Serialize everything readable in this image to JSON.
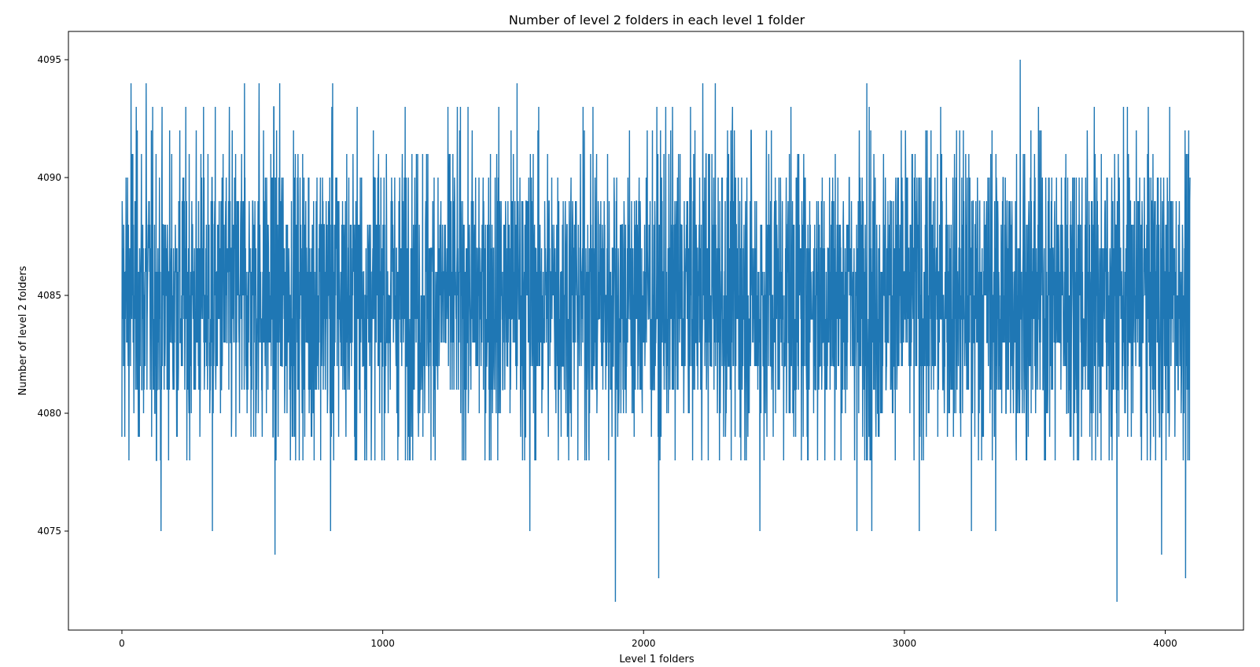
{
  "chart_data": {
    "type": "line",
    "title": "Number of level 2 folders in each level 1 folder",
    "xlabel": "Level 1 folders",
    "ylabel": "Number of level 2 folders",
    "xlim": [
      -205,
      4300
    ],
    "ylim": [
      4070.8,
      4096.2
    ],
    "xticks": [
      0,
      1000,
      2000,
      3000,
      4000
    ],
    "yticks": [
      4075,
      4080,
      4085,
      4090,
      4095
    ],
    "grid": false,
    "legend": "none",
    "series": [
      {
        "color": "#1f77b4",
        "x_start": 0,
        "x_end": 4095,
        "typical_range": [
          4079,
          4092
        ],
        "extremes": [
          {
            "x": 0,
            "y": 4079
          },
          {
            "x": 35,
            "y": 4094
          },
          {
            "x": 93,
            "y": 4094
          },
          {
            "x": 150,
            "y": 4075
          },
          {
            "x": 347,
            "y": 4075
          },
          {
            "x": 470,
            "y": 4094
          },
          {
            "x": 526,
            "y": 4094
          },
          {
            "x": 587,
            "y": 4074
          },
          {
            "x": 605,
            "y": 4094
          },
          {
            "x": 800,
            "y": 4075
          },
          {
            "x": 808,
            "y": 4094
          },
          {
            "x": 1515,
            "y": 4094
          },
          {
            "x": 1564,
            "y": 4075
          },
          {
            "x": 1892,
            "y": 4072
          },
          {
            "x": 2058,
            "y": 4073
          },
          {
            "x": 2227,
            "y": 4094
          },
          {
            "x": 2275,
            "y": 4094
          },
          {
            "x": 2446,
            "y": 4075
          },
          {
            "x": 2818,
            "y": 4075
          },
          {
            "x": 2856,
            "y": 4094
          },
          {
            "x": 2875,
            "y": 4075
          },
          {
            "x": 3057,
            "y": 4075
          },
          {
            "x": 3257,
            "y": 4075
          },
          {
            "x": 3350,
            "y": 4075
          },
          {
            "x": 3444,
            "y": 4095
          },
          {
            "x": 3815,
            "y": 4072
          },
          {
            "x": 3986,
            "y": 4074
          },
          {
            "x": 4078,
            "y": 4073
          },
          {
            "x": 4095,
            "y": 4090
          }
        ]
      }
    ]
  }
}
